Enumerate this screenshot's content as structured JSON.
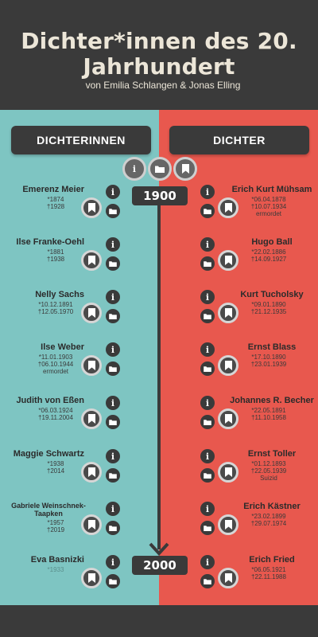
{
  "header": {
    "title": "Dichter*innen des 20. Jahrhundert",
    "subtitle": "von Emilia Schlangen & Jonas Elling"
  },
  "columns": {
    "left_label": "DICHTERINNEN",
    "right_label": "DICHTER"
  },
  "colors": {
    "left_bg": "#7ec5c2",
    "right_bg": "#e8584e",
    "dark": "#3a3a3a",
    "title_text": "#ece6d8"
  },
  "legend": [
    "info-icon",
    "folder-icon",
    "bookmark-icon"
  ],
  "timeline": {
    "start": "1900",
    "end": "2000"
  },
  "dichterinnen": [
    {
      "name": "Emerenz Meier",
      "info": "*1874\n†1928"
    },
    {
      "name": "Ilse Franke-Oehl",
      "info": "*1881\n†1938"
    },
    {
      "name": "Nelly Sachs",
      "info": "*10.12.1891\n†12.05.1970"
    },
    {
      "name": "Ilse Weber",
      "info": "*11.01.1903\n†06.10.1944\nermordet"
    },
    {
      "name": "Judith von Eßen",
      "info": "*06.03.1924\n†19.11.2004"
    },
    {
      "name": "Maggie Schwartz",
      "info": "*1938\n†2014"
    },
    {
      "name": "Gabriele Weinschnek-Taapken",
      "info": "*1957\n†2019"
    },
    {
      "name": "Eva Basnizki",
      "info": "*1933"
    }
  ],
  "dichter": [
    {
      "name": "Erich Kurt Mühsam",
      "info": "*06.04.1878\n†10.07.1934\nermordet"
    },
    {
      "name": "Hugo Ball",
      "info": "*22.02.1886\n†14.09.1927"
    },
    {
      "name": "Kurt Tucholsky",
      "info": "*09.01.1890\n†21.12.1935"
    },
    {
      "name": "Ernst Blass",
      "info": "*17.10.1890\n†23.01.1939"
    },
    {
      "name": "Johannes R. Becher",
      "info": "*22.05.1891\n†11.10.1958"
    },
    {
      "name": "Ernst Toller",
      "info": "*01.12.1893\n†22.05.1939\nSuizid"
    },
    {
      "name": "Erich Kästner",
      "info": "*23.02.1899\n†29.07.1974"
    },
    {
      "name": "Erich Fried",
      "info": "*06.05.1921\n†22.11.1988"
    }
  ]
}
